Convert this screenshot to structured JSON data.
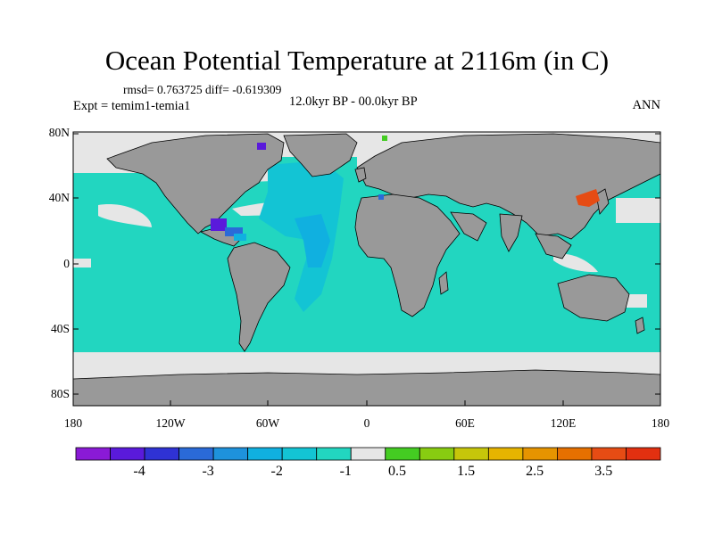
{
  "title": "Ocean Potential Temperature at 2116m (in C)",
  "stats_line": "rmsd= 0.763725  diff= -0.619309",
  "expt_line": "Expt = temim1-temia1",
  "period_line": "12.0kyr BP - 00.0kyr BP",
  "season": "ANN",
  "lat_labels": [
    "80N",
    "40N",
    "0",
    "40S",
    "80S"
  ],
  "lon_labels": [
    "180",
    "120W",
    "60W",
    "0",
    "60E",
    "120E",
    "180"
  ],
  "colorbar": {
    "colors": [
      "#8a1ad6",
      "#5a1adb",
      "#2f32d4",
      "#2a6ad8",
      "#1e92dc",
      "#10b0e0",
      "#13c4d4",
      "#22d6c0",
      "#e6e6e6",
      "#44cc22",
      "#88cc11",
      "#c6c60a",
      "#e6b400",
      "#e69400",
      "#e67000",
      "#e64c14",
      "#e23010"
    ],
    "labels": [
      "-4",
      "-3",
      "-2",
      "-1",
      "0.5",
      "1.5",
      "2.5",
      "3.5"
    ]
  },
  "map_colors": {
    "land": "#999999",
    "ocean_main": "#22d6c0",
    "ocean_light": "#e6e6e6",
    "atlantic_deep": "#13c4d4",
    "atlantic_deeper": "#10b0e0",
    "anomaly_blue": "#2a6ad8",
    "anomaly_purple": "#5a1adb",
    "anomaly_red": "#e64c14"
  }
}
